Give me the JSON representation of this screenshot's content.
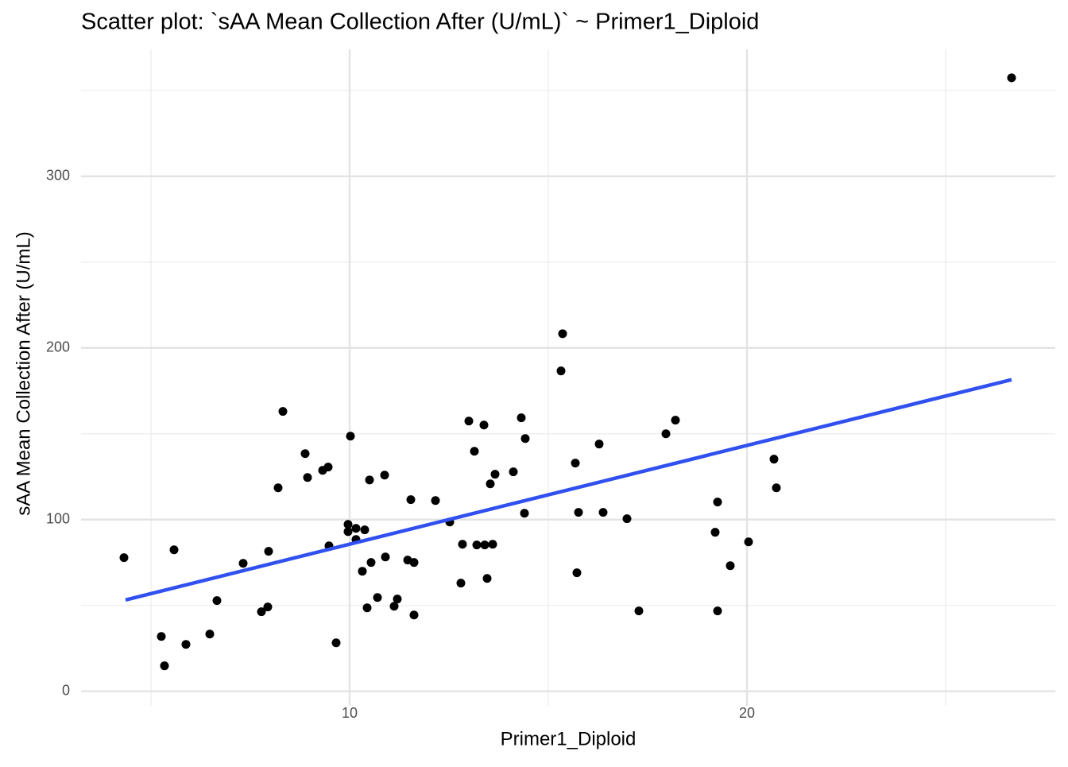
{
  "chart_data": {
    "type": "scatter",
    "title": "Scatter plot:  `sAA Mean Collection After (U/mL)`  ~  Primer1_Diploid",
    "x_label": "Primer1_Diploid",
    "y_label": "sAA Mean Collection After (U/mL)",
    "xlim": [
      3.24,
      27.76
    ],
    "ylim": [
      -8.5,
      374
    ],
    "xticks": [
      10,
      20
    ],
    "yticks": [
      0,
      100,
      200,
      300
    ],
    "x_minor_grid": [
      5,
      15,
      25
    ],
    "y_minor_grid": [
      50,
      150,
      250,
      350
    ],
    "grid": true,
    "color": "#000000",
    "x": [
      4.32,
      5.26,
      5.34,
      5.58,
      5.88,
      6.48,
      6.66,
      7.32,
      7.78,
      7.94,
      7.96,
      8.2,
      8.32,
      8.88,
      8.94,
      9.32,
      9.46,
      9.48,
      9.66,
      9.96,
      10.02,
      9.96,
      10.16,
      10.16,
      10.32,
      10.38,
      10.44,
      10.5,
      10.54,
      10.7,
      10.88,
      10.9,
      11.12,
      11.2,
      11.46,
      11.54,
      11.62,
      11.62,
      12.16,
      12.52,
      12.8,
      12.84,
      13.0,
      13.14,
      13.2,
      13.38,
      13.4,
      13.46,
      13.54,
      13.6,
      13.66,
      14.12,
      14.32,
      14.4,
      14.42,
      15.32,
      15.36,
      15.68,
      15.72,
      15.76,
      16.28,
      16.38,
      16.98,
      17.28,
      17.96,
      18.2,
      19.2,
      19.26,
      19.26,
      19.58,
      20.04,
      20.68,
      20.74,
      26.66
    ],
    "values": [
      77.8,
      31.9,
      14.8,
      82.4,
      27.3,
      33.3,
      52.8,
      74.5,
      46.3,
      49.1,
      81.5,
      118.5,
      163,
      138.4,
      124.5,
      128.7,
      130.6,
      84.7,
      28.2,
      93,
      148.6,
      97.2,
      94.9,
      88.4,
      69.9,
      94,
      48.6,
      123.1,
      75,
      54.6,
      125.9,
      78.2,
      49.5,
      53.7,
      76.4,
      111.6,
      75,
      44.4,
      111.1,
      98.6,
      63,
      85.6,
      157.4,
      139.8,
      85.2,
      155.1,
      85.2,
      65.7,
      120.8,
      85.6,
      126.4,
      127.8,
      159.3,
      103.7,
      147.2,
      186.6,
      208.3,
      132.9,
      69,
      104.2,
      144,
      104.2,
      100.5,
      46.8,
      150,
      157.9,
      92.6,
      110.2,
      46.8,
      73.1,
      87,
      135.2,
      118.5,
      357.4
    ],
    "fit": {
      "color": "#3050f0",
      "x": [
        4.36,
        26.66
      ],
      "values": [
        53.2,
        181.5
      ]
    }
  }
}
